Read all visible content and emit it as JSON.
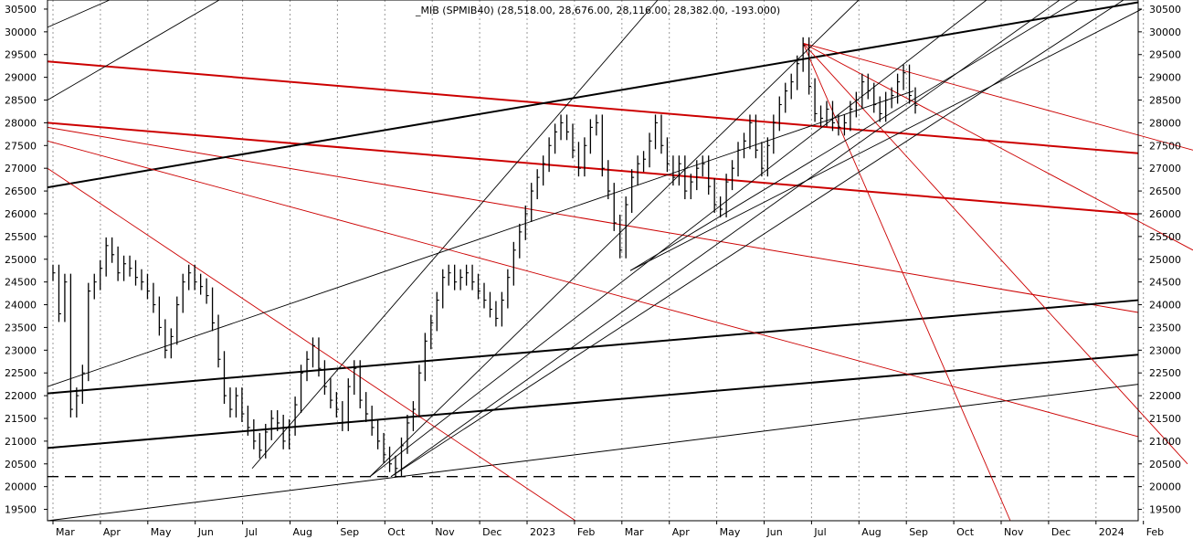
{
  "chart_data": {
    "type": "line",
    "title": "_MIB (SPMIB40) (28,518.00, 28,676.00, 28,116.00, 28,382.00, -193.000)",
    "y_ticks": [
      "19500",
      "20000",
      "20500",
      "21000",
      "21500",
      "22000",
      "22500",
      "23000",
      "23500",
      "24000",
      "24500",
      "25000",
      "25500",
      "26000",
      "26500",
      "27000",
      "27500",
      "28000",
      "28500",
      "29000",
      "29500",
      "30000",
      "30500"
    ],
    "x_ticks": [
      "Mar",
      "Apr",
      "May",
      "Jun",
      "Jul",
      "Aug",
      "Sep",
      "Oct",
      "Nov",
      "Dec",
      "2023",
      "Feb",
      "Mar",
      "Apr",
      "May",
      "Jun",
      "Jul",
      "Aug",
      "Sep",
      "Oct",
      "Nov",
      "Dec",
      "2024",
      "Feb"
    ],
    "ylim": [
      19250,
      30700
    ],
    "grid": "vertical dotted",
    "last_bar": {
      "open": 28518.0,
      "high": 28676.0,
      "low": 28116.0,
      "close": 28382.0,
      "change": -193.0
    },
    "support_level": 20220,
    "series": [
      {
        "values": [
          24700,
          23800,
          24500,
          21700,
          22000,
          22500,
          24300,
          24500,
          24800,
          25300,
          25100,
          24700,
          24900,
          24800,
          24600,
          24500,
          24300,
          24000,
          23500,
          23000,
          23300,
          24000,
          24500,
          24700,
          24500,
          24400,
          24200,
          23600,
          22800,
          22000,
          21700,
          22000,
          21600,
          21300,
          21000,
          20800,
          21200,
          21500,
          21400,
          21000,
          21300,
          21800,
          22500,
          22800,
          23100,
          22600,
          22200,
          21900,
          21700,
          21400,
          22200,
          22600,
          21900,
          21600,
          21300,
          21000,
          20700,
          20500,
          20400,
          20900,
          21400,
          21700,
          22500,
          23200,
          23600,
          24100,
          24600,
          24700,
          24500,
          24600,
          24700,
          24500,
          24300,
          24100,
          23900,
          23700,
          24100,
          24600,
          25200,
          25600,
          26000,
          26500,
          26800,
          27100,
          27500,
          27800,
          28000,
          27800,
          27400,
          27000,
          27500,
          27900,
          28000,
          27000,
          26500,
          25800,
          25200,
          26200,
          26800,
          27100,
          27200,
          27600,
          28000,
          27500,
          27100,
          26800,
          27100,
          26500,
          26700,
          27000,
          27100,
          26600,
          26200,
          26100,
          26700,
          27000,
          27400,
          27600,
          28000,
          27400,
          27000,
          27500,
          28000,
          28400,
          28700,
          28900,
          29300,
          29700,
          28800,
          28200,
          28100,
          28300,
          28000,
          27900,
          28000,
          28300,
          28500,
          28900,
          28700,
          28400,
          28200,
          28500,
          28600,
          28900,
          29100,
          28600,
          28382
        ]
      }
    ],
    "trendlines": [
      {
        "color": "#cc0000",
        "width": 2,
        "y_start": 29350,
        "y_end": 27330
      },
      {
        "color": "#cc0000",
        "width": 2,
        "y_start": 28000,
        "y_end": 25990
      },
      {
        "color": "#cc0000",
        "width": 1,
        "y_start": 27900,
        "y_end": 23830
      },
      {
        "color": "#000000",
        "width": 2,
        "y_start": 26580,
        "y_end": 30650
      },
      {
        "color": "#000000",
        "width": 2,
        "y_start": 22050,
        "y_end": 24100
      },
      {
        "color": "#000000",
        "width": 2,
        "y_start": 20850,
        "y_end": 22900
      },
      {
        "color": "#000000",
        "width": 1,
        "y_start": 19250,
        "y_end": 22250
      }
    ]
  }
}
